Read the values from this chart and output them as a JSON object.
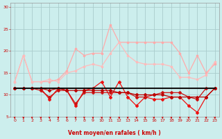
{
  "x": [
    0,
    1,
    2,
    3,
    4,
    5,
    6,
    7,
    8,
    9,
    10,
    11,
    12,
    13,
    14,
    15,
    16,
    17,
    18,
    19,
    20,
    21,
    22,
    23
  ],
  "series": [
    {
      "name": "line_black_flat",
      "color": "#111111",
      "lw": 1.5,
      "marker": null,
      "markersize": 0,
      "y": [
        11.5,
        11.5,
        11.5,
        11.5,
        11.5,
        11.5,
        11.5,
        11.5,
        11.5,
        11.5,
        11.5,
        11.5,
        11.5,
        11.5,
        11.5,
        11.5,
        11.5,
        11.5,
        11.5,
        11.5,
        11.5,
        11.5,
        11.5,
        11.5
      ]
    },
    {
      "name": "line_salmon_upper_gust",
      "color": "#ffaaaa",
      "lw": 0.9,
      "marker": "s",
      "markersize": 2.0,
      "y": [
        13.0,
        19.0,
        13.0,
        13.0,
        13.0,
        13.5,
        15.5,
        20.5,
        19.0,
        19.5,
        19.5,
        26.0,
        22.0,
        22.0,
        22.0,
        22.0,
        22.0,
        22.0,
        22.0,
        19.5,
        15.0,
        19.0,
        15.0,
        17.0
      ]
    },
    {
      "name": "line_salmon_lower_gust",
      "color": "#ffbbbb",
      "lw": 0.9,
      "marker": "s",
      "markersize": 2.0,
      "y": [
        13.0,
        19.0,
        13.0,
        13.0,
        13.5,
        13.0,
        15.0,
        15.5,
        16.5,
        17.0,
        16.5,
        19.5,
        22.0,
        19.0,
        17.5,
        17.0,
        17.0,
        17.0,
        16.5,
        14.0,
        14.0,
        13.5,
        14.5,
        17.5
      ]
    },
    {
      "name": "line_red_volatile",
      "color": "#ee1111",
      "lw": 0.9,
      "marker": "D",
      "markersize": 2.0,
      "y": [
        11.5,
        11.5,
        11.5,
        11.5,
        9.0,
        11.5,
        11.0,
        7.5,
        11.0,
        11.5,
        13.0,
        9.5,
        13.0,
        9.5,
        7.5,
        9.5,
        9.0,
        9.0,
        9.5,
        9.5,
        7.5,
        6.0,
        9.5,
        11.5
      ]
    },
    {
      "name": "line_dark_red_flat",
      "color": "#cc1111",
      "lw": 0.9,
      "marker": "D",
      "markersize": 2.0,
      "y": [
        11.5,
        11.5,
        11.5,
        11.0,
        9.5,
        11.0,
        11.0,
        8.0,
        10.5,
        10.5,
        10.5,
        10.5,
        10.5,
        10.5,
        9.5,
        9.5,
        10.0,
        10.5,
        10.5,
        10.5,
        9.5,
        9.0,
        11.5,
        11.5
      ]
    },
    {
      "name": "line_dark_red_declining",
      "color": "#bb0000",
      "lw": 0.9,
      "marker": "D",
      "markersize": 2.0,
      "y": [
        11.5,
        11.5,
        11.5,
        11.5,
        11.0,
        11.5,
        11.0,
        11.0,
        11.0,
        11.0,
        11.0,
        11.0,
        10.5,
        10.5,
        10.0,
        10.0,
        10.0,
        10.0,
        9.5,
        9.5,
        9.5,
        9.5,
        9.5,
        11.5
      ]
    }
  ],
  "xlabel": "Vent moyen/en rafales ( km/h )",
  "ylim": [
    5,
    31
  ],
  "xlim": [
    -0.5,
    23.5
  ],
  "yticks": [
    5,
    10,
    15,
    20,
    25,
    30
  ],
  "xticks": [
    0,
    1,
    2,
    3,
    4,
    5,
    6,
    7,
    8,
    9,
    10,
    11,
    12,
    13,
    14,
    15,
    16,
    17,
    18,
    19,
    20,
    21,
    22,
    23
  ],
  "bg_color": "#cceeed",
  "grid_color": "#aacccc",
  "tick_color": "#cc0000",
  "label_color": "#cc0000",
  "figsize": [
    3.2,
    2.0
  ],
  "dpi": 100
}
